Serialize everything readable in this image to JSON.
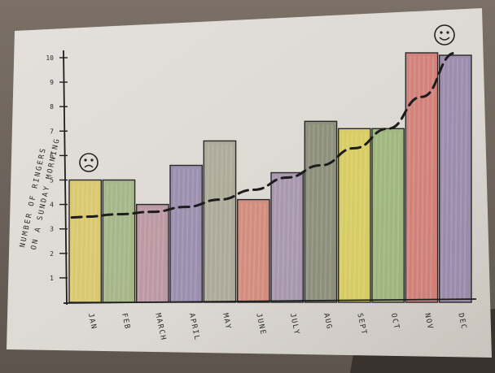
{
  "chart_data": {
    "type": "bar",
    "title": "",
    "ylabel": "NUMBER OF RINGERS ON A SUNDAY MORNING",
    "xlabel": "",
    "categories": [
      "JAN",
      "FEB",
      "MARCH",
      "APRIL",
      "MAY",
      "JUNE",
      "JULY",
      "AUG",
      "SEPT",
      "OCT",
      "NOV",
      "DEC"
    ],
    "values": [
      5,
      5,
      4,
      5.6,
      6.6,
      4.2,
      5.3,
      7.4,
      7.1,
      7.1,
      10.2,
      10.1
    ],
    "trend": [
      3.5,
      3.6,
      3.7,
      3.9,
      4.2,
      4.6,
      5.1,
      5.6,
      6.3,
      7.1,
      8.4,
      10.2
    ],
    "yticks": [
      "1",
      "2",
      "3",
      "4",
      "5",
      "6",
      "7",
      "8",
      "9",
      "10"
    ],
    "ylim": [
      0,
      10.5
    ],
    "grid": false,
    "bar_colors": [
      "#d9c45a",
      "#9aae78",
      "#b58a98",
      "#8e7fa6",
      "#a3a08c",
      "#cf7d6c",
      "#9c8aa8",
      "#7d8069",
      "#d6cb4c",
      "#93b06e",
      "#cf6f68",
      "#8f7ca6"
    ],
    "annotations": {
      "sad_face": "sad-face",
      "happy_face": "happy-face"
    }
  }
}
